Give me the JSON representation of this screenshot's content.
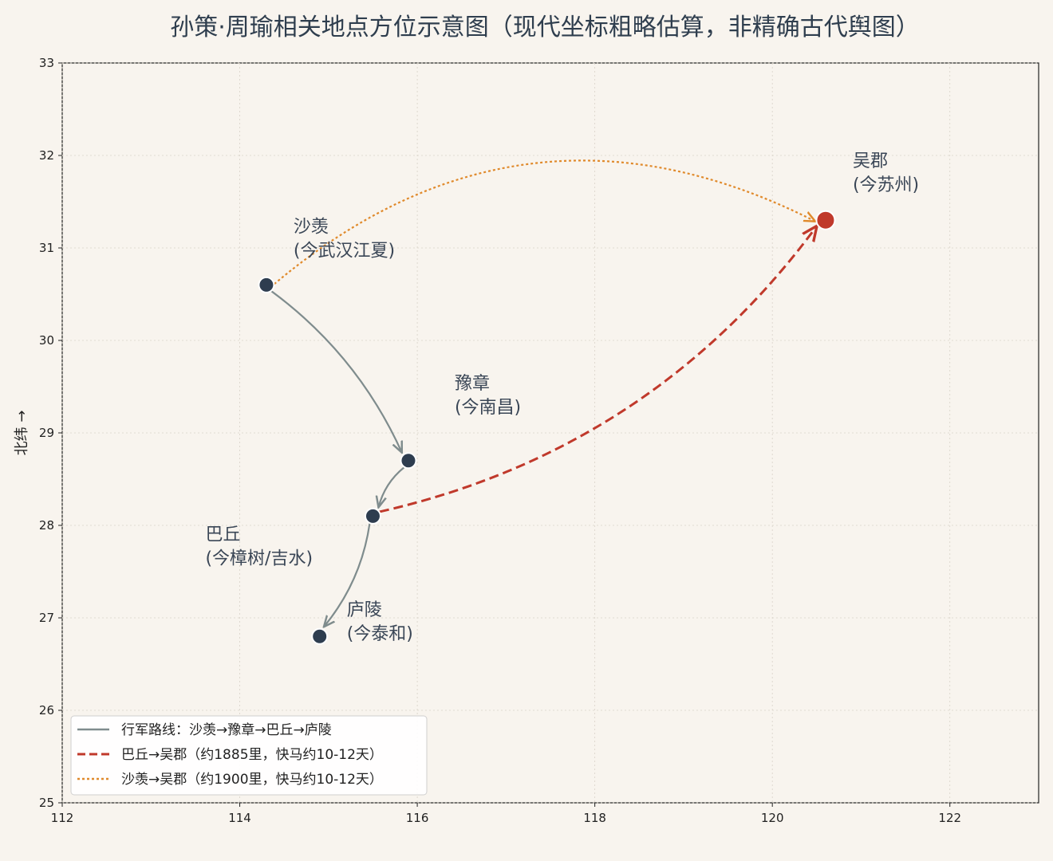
{
  "chart_data": {
    "type": "scatter",
    "title": "孙策·周瑜相关地点方位示意图（现代坐标粗略估算，非精确古代舆图）",
    "xlabel": "",
    "ylabel": "北纬 →",
    "xlim": [
      112,
      123
    ],
    "ylim": [
      25,
      33
    ],
    "xticks": [
      112,
      114,
      116,
      118,
      120,
      122
    ],
    "yticks": [
      25,
      26,
      27,
      28,
      29,
      30,
      31,
      32,
      33
    ],
    "grid": true,
    "legend_position": "lower-left",
    "colors": {
      "point": "#2e3d4f",
      "highlight_point": "#c0392b",
      "march": "#7f8c8d",
      "route1": "#c0392b",
      "route2": "#e08a2c",
      "label": "#3a4656"
    },
    "points": [
      {
        "id": "shaxian",
        "name": "沙羡",
        "note": "(今武汉江夏)",
        "x": 114.3,
        "y": 30.6,
        "highlight": false
      },
      {
        "id": "yuzhang",
        "name": "豫章",
        "note": "(今南昌)",
        "x": 115.9,
        "y": 28.7,
        "highlight": false
      },
      {
        "id": "baqiu",
        "name": "巴丘",
        "note": "(今樟树/吉水)",
        "x": 115.5,
        "y": 28.1,
        "highlight": false
      },
      {
        "id": "luling",
        "name": "庐陵",
        "note": "(今泰和)",
        "x": 114.9,
        "y": 26.8,
        "highlight": false
      },
      {
        "id": "wujun",
        "name": "吴郡",
        "note": "(今苏州)",
        "x": 120.6,
        "y": 31.3,
        "highlight": true
      }
    ],
    "series": [
      {
        "name": "行军路线：沙羡→豫章→巴丘→庐陵",
        "style": "solid",
        "color": "#7f8c8d",
        "path": [
          "shaxian",
          "yuzhang",
          "baqiu",
          "luling"
        ]
      },
      {
        "name": "巴丘→吴郡（约1885里，快马约10-12天）",
        "style": "dashed",
        "color": "#c0392b",
        "path": [
          "baqiu",
          "wujun"
        ]
      },
      {
        "name": "沙羡→吴郡（约1900里，快马约10-12天）",
        "style": "dotted",
        "color": "#e08a2c",
        "path": [
          "shaxian",
          "wujun"
        ]
      }
    ]
  }
}
